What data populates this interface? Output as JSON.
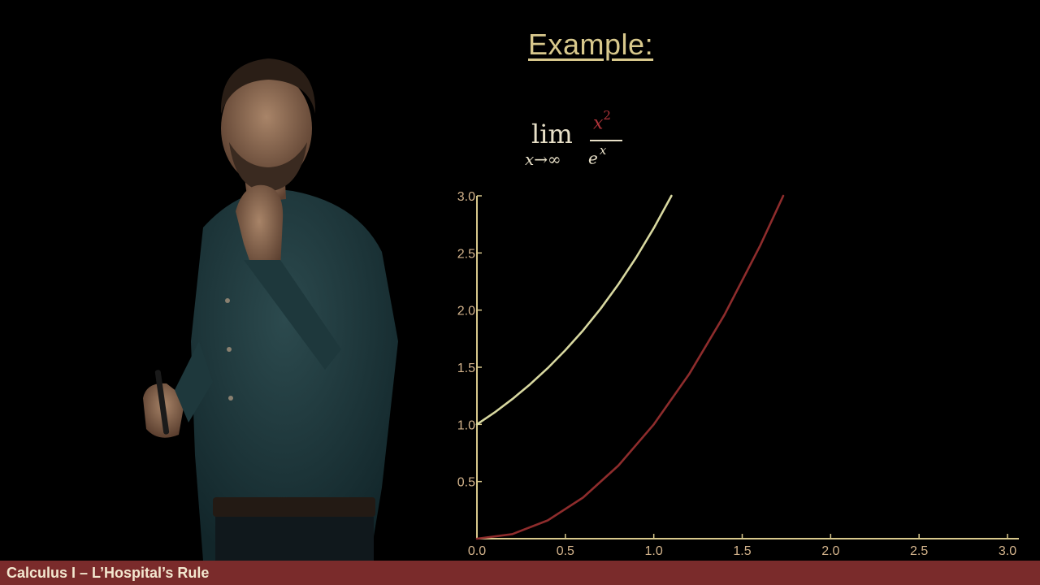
{
  "slide": {
    "heading": "Example:",
    "limit": {
      "word": "lim",
      "subscript": "x→∞",
      "numerator_base": "x",
      "numerator_exp": "2",
      "denominator_base": "e",
      "denominator_exp": "x"
    }
  },
  "footer": {
    "label": "Calculus I – L’Hospital’s Rule"
  },
  "colors": {
    "background": "#000000",
    "heading": "#d8c88c",
    "footer": "#7a2b2b",
    "axes": "#d8c88c",
    "curve_exp": "#d8d8a0",
    "curve_square": "#8e2c2c",
    "numerator": "#b0343a"
  },
  "chart_data": {
    "type": "line",
    "title": "",
    "xlabel": "",
    "ylabel": "",
    "xlim": [
      0,
      3
    ],
    "ylim": [
      0,
      3
    ],
    "x_ticks": [
      "0.0",
      "0.5",
      "1.0",
      "1.5",
      "2.0",
      "2.5",
      "3.0"
    ],
    "y_ticks": [
      "0.5",
      "1.0",
      "1.5",
      "2.0",
      "2.5",
      "3.0"
    ],
    "grid": false,
    "legend": "none",
    "series": [
      {
        "color": "#d8d8a0",
        "x": [
          0,
          0.1,
          0.2,
          0.3,
          0.4,
          0.5,
          0.6,
          0.7,
          0.8,
          0.9,
          1.0,
          1.1
        ],
        "y": [
          1.0,
          1.105,
          1.221,
          1.35,
          1.492,
          1.649,
          1.822,
          2.014,
          2.226,
          2.46,
          2.718,
          3.0
        ]
      },
      {
        "color": "#8e2c2c",
        "x": [
          0,
          0.2,
          0.4,
          0.6,
          0.8,
          1.0,
          1.2,
          1.4,
          1.6,
          1.732
        ],
        "y": [
          0,
          0.04,
          0.16,
          0.36,
          0.64,
          1.0,
          1.44,
          1.96,
          2.56,
          3.0
        ]
      }
    ]
  }
}
